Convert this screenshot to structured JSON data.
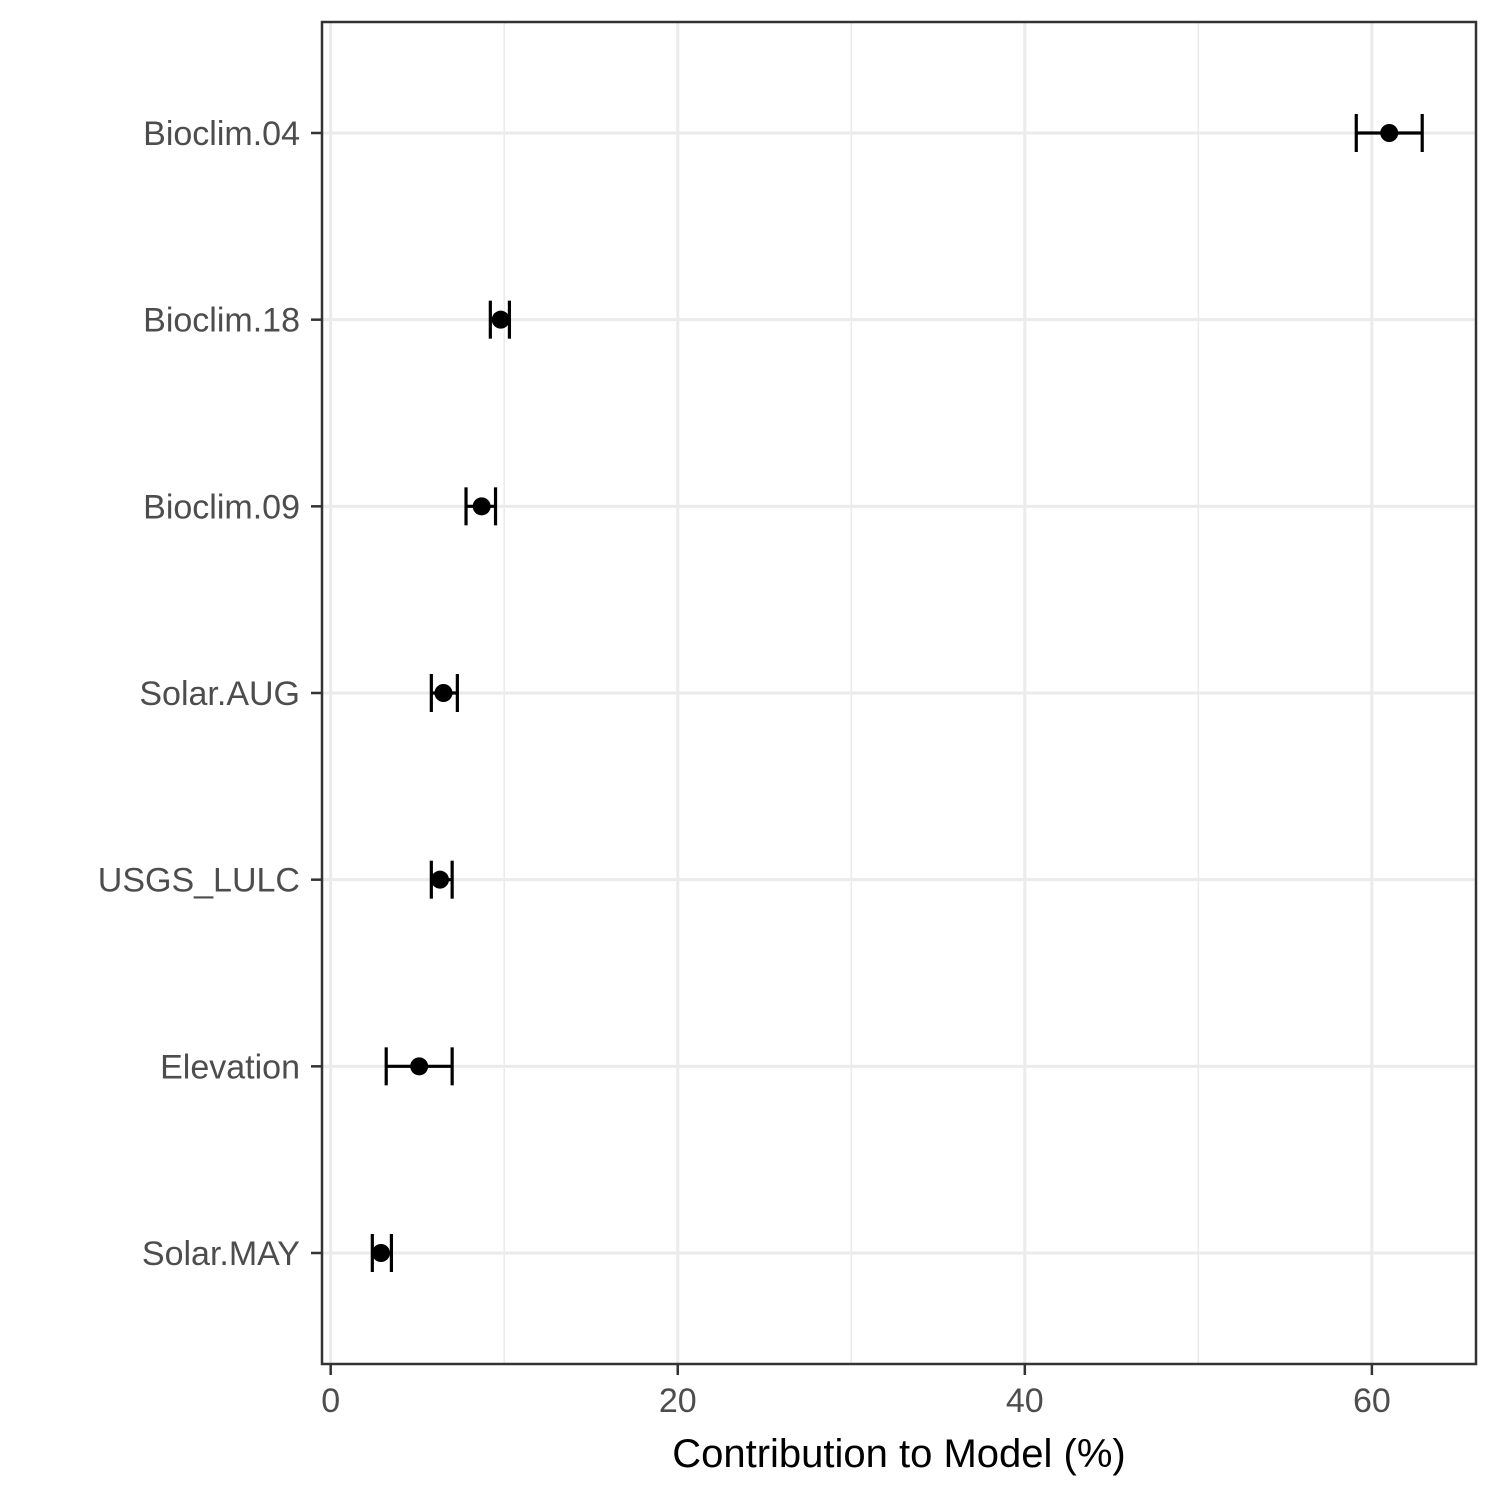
{
  "chart_data": {
    "type": "scatter",
    "title": "",
    "xlabel": "Contribution to Model (%)",
    "ylabel": "",
    "xlim": [
      -0.5,
      66
    ],
    "x_ticks": [
      0,
      20,
      40,
      60
    ],
    "x_minor_gridlines": [
      10,
      30,
      50
    ],
    "grid": true,
    "legend": "none",
    "error_bars": true,
    "categories": [
      "Bioclim.04",
      "Bioclim.18",
      "Bioclim.09",
      "Solar.AUG",
      "USGS_LULC",
      "Elevation",
      "Solar.MAY"
    ],
    "points": [
      {
        "label": "Bioclim.04",
        "value": 61.0,
        "low": 59.1,
        "high": 62.9
      },
      {
        "label": "Bioclim.18",
        "value": 9.8,
        "low": 9.2,
        "high": 10.3
      },
      {
        "label": "Bioclim.09",
        "value": 8.7,
        "low": 7.8,
        "high": 9.5
      },
      {
        "label": "Solar.AUG",
        "value": 6.5,
        "low": 5.8,
        "high": 7.3
      },
      {
        "label": "USGS_LULC",
        "value": 6.3,
        "low": 5.8,
        "high": 7.0
      },
      {
        "label": "Elevation",
        "value": 5.1,
        "low": 3.2,
        "high": 7.0
      },
      {
        "label": "Solar.MAY",
        "value": 2.9,
        "low": 2.4,
        "high": 3.5
      }
    ],
    "colors": {
      "point": "#000000",
      "grid": "#ebebeb",
      "panel_border": "#333333",
      "text": "#4d4d4d"
    }
  }
}
